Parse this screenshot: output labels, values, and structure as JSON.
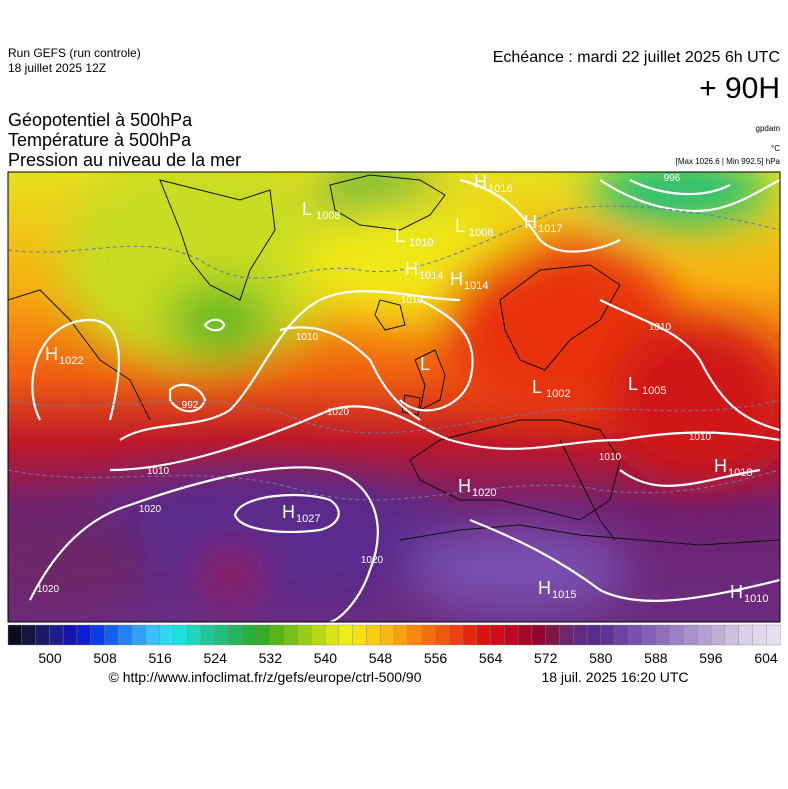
{
  "header": {
    "run": "Run GEFS (run controle)",
    "run_date": "18 juillet 2025 12Z",
    "valid": "Echéance : mardi 22 juillet 2025 6h UTC",
    "lead": "+ 90H"
  },
  "titles": [
    "Géopotentiel à 500hPa",
    "Température à 500hPa",
    "Pression au niveau de la mer"
  ],
  "units": {
    "geopotential": "gpdam",
    "temperature": "°C",
    "pressure_range": "[Max 1026.6 | Min 992.5] hPa"
  },
  "centers": [
    {
      "kind": "H",
      "value": "1022"
    },
    {
      "kind": "L",
      "value": "1008"
    },
    {
      "kind": "H",
      "value": "1016"
    },
    {
      "kind": "L",
      "value": "1008"
    },
    {
      "kind": "H",
      "value": "1017"
    },
    {
      "kind": "L",
      "value": "1010"
    },
    {
      "kind": "H",
      "value": "1014"
    },
    {
      "kind": "H",
      "value": "1014"
    },
    {
      "kind": "L",
      "value": "1002"
    },
    {
      "kind": "L",
      "value": "1005"
    },
    {
      "kind": "H",
      "value": "1018"
    },
    {
      "kind": "H",
      "value": "1020"
    },
    {
      "kind": "H",
      "value": "1027"
    },
    {
      "kind": "H",
      "value": "1015"
    },
    {
      "kind": "H",
      "value": "1010"
    },
    {
      "kind": "L",
      "value": ""
    }
  ],
  "isobar_labels": [
    "1010",
    "1010",
    "1010",
    "1020",
    "1010",
    "1020",
    "1010",
    "1010",
    "1020",
    "1020",
    "992",
    "996"
  ],
  "colorbar": {
    "ticks": [
      "500",
      "508",
      "516",
      "524",
      "532",
      "540",
      "548",
      "556",
      "564",
      "572",
      "580",
      "588",
      "596",
      "604"
    ],
    "colors": [
      "#0c0c1e",
      "#141440",
      "#1a1a66",
      "#1c1c8c",
      "#1414b0",
      "#0a1ed4",
      "#0a3ce8",
      "#1460f4",
      "#2080f8",
      "#30a0f8",
      "#38c0f8",
      "#30d8f0",
      "#20e0d8",
      "#20d8b8",
      "#20c898",
      "#20c078",
      "#20b858",
      "#28b038",
      "#38ac20",
      "#58b418",
      "#78c018",
      "#98cc18",
      "#b8d818",
      "#d8e418",
      "#f0ec18",
      "#f8e014",
      "#f8cc10",
      "#f8b810",
      "#f8a010",
      "#f88810",
      "#f47010",
      "#f05810",
      "#ec4010",
      "#e42810",
      "#dc1410",
      "#d00c18",
      "#c00820",
      "#a80828",
      "#900830",
      "#7c1848",
      "#6c2868",
      "#602c80",
      "#582c8c",
      "#603498",
      "#6c40a4",
      "#7850b0",
      "#8460b8",
      "#9070bc",
      "#9c80c4",
      "#a890c8",
      "#b4a0d0",
      "#c0b0d8",
      "#ccc0e0",
      "#d8d0e8",
      "#e0d8ec",
      "#e8e0f0"
    ]
  },
  "footer": {
    "source": "© http://www.infoclimat.fr/z/gefs/europe/ctrl-500/90",
    "generated": "18 juil. 2025 16:20 UTC"
  }
}
